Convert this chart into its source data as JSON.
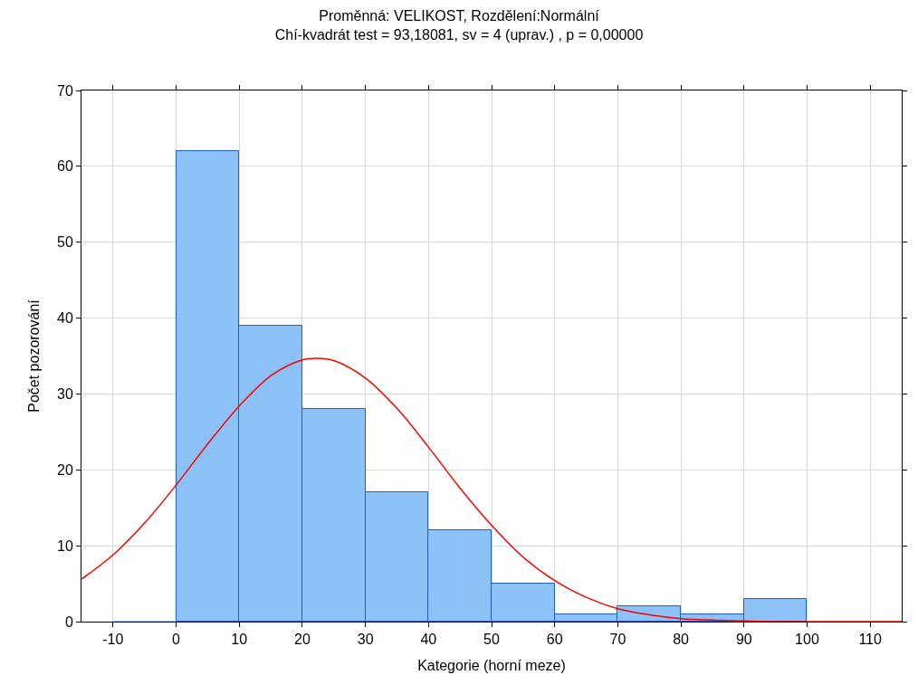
{
  "chart_data": {
    "type": "histogram",
    "title": "Proměnná: VELIKOST, Rozdělení:Normální",
    "subtitle": "Chí-kvadrát test = 93,18081, sv = 4 (uprav.) , p = 0,00000",
    "xlabel": "Kategorie (horní meze)",
    "ylabel": "Počet pozorování",
    "bins": [
      -10,
      0,
      10,
      20,
      30,
      40,
      50,
      60,
      70,
      80,
      90,
      100
    ],
    "values": [
      0,
      62,
      39,
      28,
      17,
      12,
      5,
      1,
      2,
      1,
      3
    ],
    "color": "#8cc2f8",
    "series": [
      {
        "type": "line",
        "color": "#ff0000",
        "x": [
          -15,
          -10,
          -5,
          0,
          5,
          10,
          15,
          20,
          22.3,
          25,
          30,
          35,
          40,
          45,
          50,
          55,
          60,
          65,
          70,
          75,
          80,
          85,
          90,
          95,
          100,
          105,
          110,
          115
        ],
        "values": [
          5.6,
          8.8,
          13.0,
          18.0,
          23.4,
          28.4,
          32.4,
          34.5,
          34.7,
          34.4,
          32.1,
          28.1,
          23.0,
          17.6,
          12.7,
          8.5,
          5.4,
          3.2,
          1.7,
          0.9,
          0.4,
          0.2,
          0.1,
          0,
          0,
          0,
          0,
          0
        ]
      }
    ],
    "xlim": [
      -15,
      115
    ],
    "xticks": [
      -10,
      0,
      10,
      20,
      30,
      40,
      50,
      60,
      70,
      80,
      90,
      100,
      110
    ],
    "ylim": [
      0,
      70
    ],
    "yticks": [
      0,
      10,
      20,
      30,
      40,
      50,
      60,
      70
    ],
    "grid": true,
    "marker": "none",
    "line_style": "solid"
  }
}
